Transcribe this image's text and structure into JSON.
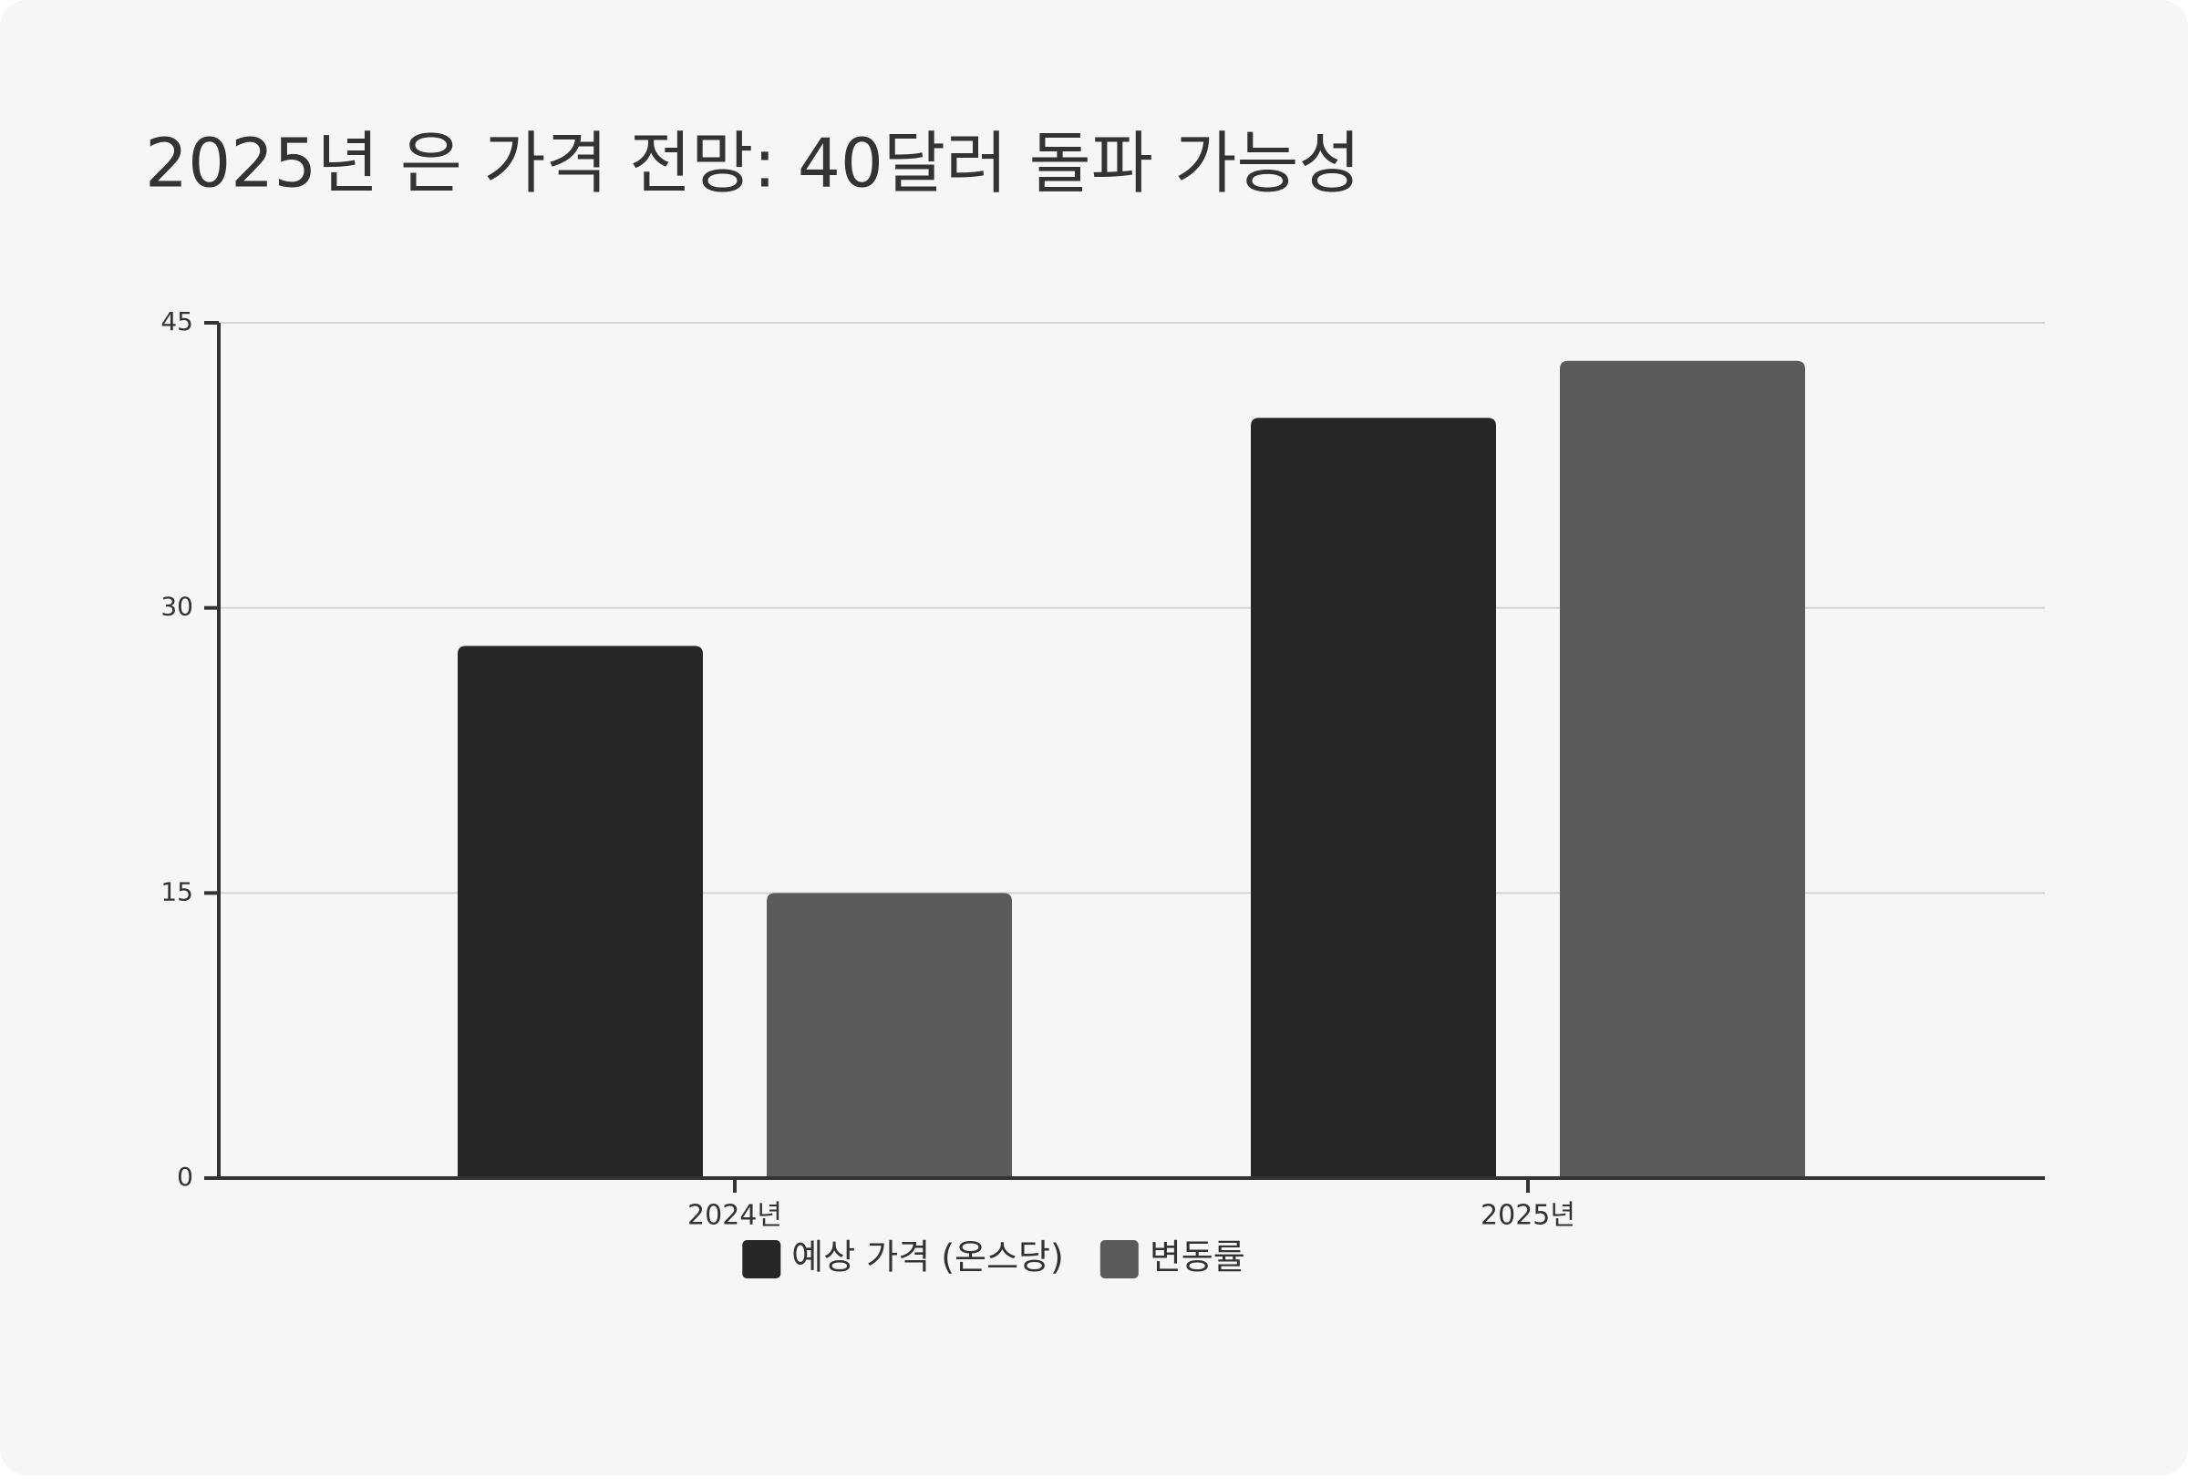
{
  "chart_data": {
    "type": "bar",
    "title": "2025년 은 가격 전망: 40달러 돌파 가능성",
    "categories": [
      "2024년",
      "2025년"
    ],
    "series": [
      {
        "name": "예상 가격 (온스당)",
        "color": "#262626",
        "values": [
          28,
          40
        ]
      },
      {
        "name": "변동률",
        "color": "#5b5b5b",
        "values": [
          15,
          43
        ]
      }
    ],
    "ylim": [
      0,
      45
    ],
    "yticks": [
      0,
      15,
      30,
      45
    ],
    "grid": true,
    "legend": "bottom"
  }
}
